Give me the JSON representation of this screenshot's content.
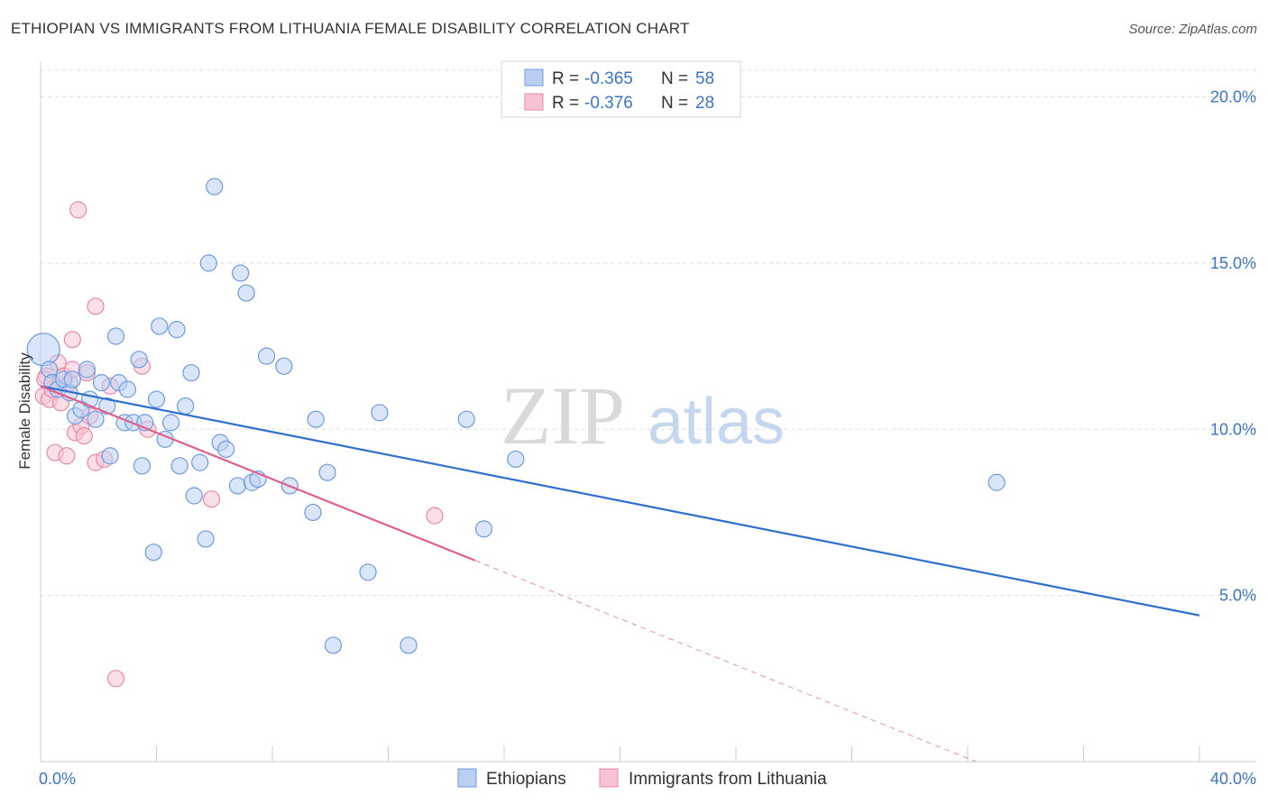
{
  "header": {
    "title": "ETHIOPIAN VS IMMIGRANTS FROM LITHUANIA FEMALE DISABILITY CORRELATION CHART",
    "source": "Source: ZipAtlas.com"
  },
  "watermark": {
    "zip": "ZIP",
    "atlas": "atlas"
  },
  "legend": {
    "rows": [
      {
        "r_label": "R =",
        "r_value": "-0.365",
        "n_label": "N =",
        "n_value": "58"
      },
      {
        "r_label": "R =",
        "r_value": "-0.376",
        "n_label": "N =",
        "n_value": "28"
      }
    ]
  },
  "colors": {
    "blue_fill": "#b9d0f3",
    "blue_stroke": "#6d9ae0",
    "blue_line": "#2f6fcf",
    "pink_fill": "#f7c3d3",
    "pink_stroke": "#e889a8",
    "pink_line": "#e0608b",
    "tick_text": "#3b74c9",
    "grid": "#dddddd"
  },
  "chart_data": {
    "type": "scatter",
    "title": "ETHIOPIAN VS IMMIGRANTS FROM LITHUANIA FEMALE DISABILITY CORRELATION CHART",
    "xlabel": "",
    "ylabel": "Female Disability",
    "xlim": [
      0,
      40
    ],
    "ylim": [
      0,
      20.8
    ],
    "x_tick_labels": [
      "0.0%",
      "40.0%"
    ],
    "y_ticks": [
      5,
      10,
      15,
      20
    ],
    "y_tick_labels": [
      "5.0%",
      "10.0%",
      "15.0%",
      "20.0%"
    ],
    "grid": true,
    "legend_position": "top-center",
    "series": [
      {
        "name": "Ethiopians",
        "color": "#6d9ae0",
        "r": -0.365,
        "n": 58,
        "trend": {
          "x": [
            0,
            40
          ],
          "y": [
            11.3,
            4.4
          ]
        },
        "points": [
          {
            "x": 0.1,
            "y": 12.4,
            "big": true
          },
          {
            "x": 0.3,
            "y": 11.8
          },
          {
            "x": 0.4,
            "y": 11.4
          },
          {
            "x": 0.6,
            "y": 11.2
          },
          {
            "x": 0.8,
            "y": 11.5
          },
          {
            "x": 1.0,
            "y": 11.1
          },
          {
            "x": 1.1,
            "y": 11.5
          },
          {
            "x": 1.2,
            "y": 10.4
          },
          {
            "x": 1.4,
            "y": 10.6
          },
          {
            "x": 1.6,
            "y": 11.8
          },
          {
            "x": 1.7,
            "y": 10.9
          },
          {
            "x": 1.9,
            "y": 10.3
          },
          {
            "x": 2.1,
            "y": 11.4
          },
          {
            "x": 2.3,
            "y": 10.7
          },
          {
            "x": 2.4,
            "y": 9.2
          },
          {
            "x": 2.6,
            "y": 12.8
          },
          {
            "x": 2.7,
            "y": 11.4
          },
          {
            "x": 2.9,
            "y": 10.2
          },
          {
            "x": 3.0,
            "y": 11.2
          },
          {
            "x": 3.2,
            "y": 10.2
          },
          {
            "x": 3.4,
            "y": 12.1
          },
          {
            "x": 3.5,
            "y": 8.9
          },
          {
            "x": 3.6,
            "y": 10.2
          },
          {
            "x": 3.9,
            "y": 6.3
          },
          {
            "x": 4.0,
            "y": 10.9
          },
          {
            "x": 4.1,
            "y": 13.1
          },
          {
            "x": 4.3,
            "y": 9.7
          },
          {
            "x": 4.5,
            "y": 10.2
          },
          {
            "x": 4.7,
            "y": 13.0
          },
          {
            "x": 4.8,
            "y": 8.9
          },
          {
            "x": 5.0,
            "y": 10.7
          },
          {
            "x": 5.2,
            "y": 11.7
          },
          {
            "x": 5.3,
            "y": 8.0
          },
          {
            "x": 5.5,
            "y": 9.0
          },
          {
            "x": 5.7,
            "y": 6.7
          },
          {
            "x": 5.8,
            "y": 15.0
          },
          {
            "x": 6.0,
            "y": 17.3
          },
          {
            "x": 6.2,
            "y": 9.6
          },
          {
            "x": 6.4,
            "y": 9.4
          },
          {
            "x": 6.8,
            "y": 8.3
          },
          {
            "x": 6.9,
            "y": 14.7
          },
          {
            "x": 7.1,
            "y": 14.1
          },
          {
            "x": 7.3,
            "y": 8.4
          },
          {
            "x": 7.5,
            "y": 8.5
          },
          {
            "x": 7.8,
            "y": 12.2
          },
          {
            "x": 8.4,
            "y": 11.9
          },
          {
            "x": 8.6,
            "y": 8.3
          },
          {
            "x": 9.4,
            "y": 7.5
          },
          {
            "x": 9.5,
            "y": 10.3
          },
          {
            "x": 9.9,
            "y": 8.7
          },
          {
            "x": 10.1,
            "y": 3.5
          },
          {
            "x": 11.3,
            "y": 5.7
          },
          {
            "x": 11.7,
            "y": 10.5
          },
          {
            "x": 12.7,
            "y": 3.5
          },
          {
            "x": 14.7,
            "y": 10.3
          },
          {
            "x": 15.3,
            "y": 7.0
          },
          {
            "x": 16.4,
            "y": 9.1
          },
          {
            "x": 33.0,
            "y": 8.4
          }
        ]
      },
      {
        "name": "Immigrants from Lithuania",
        "color": "#e889a8",
        "r": -0.376,
        "n": 28,
        "trend": {
          "x": [
            0,
            15.0
          ],
          "y": [
            11.3,
            6.05
          ]
        },
        "trend_dashed": {
          "x": [
            15.0,
            40
          ],
          "y": [
            6.05,
            -2.7
          ]
        },
        "points": [
          {
            "x": 0.1,
            "y": 11.0
          },
          {
            "x": 0.2,
            "y": 11.6
          },
          {
            "x": 0.3,
            "y": 10.9
          },
          {
            "x": 0.4,
            "y": 11.2
          },
          {
            "x": 0.5,
            "y": 9.3
          },
          {
            "x": 0.6,
            "y": 12.0
          },
          {
            "x": 0.7,
            "y": 10.8
          },
          {
            "x": 0.8,
            "y": 11.6
          },
          {
            "x": 0.9,
            "y": 9.2
          },
          {
            "x": 1.0,
            "y": 11.4
          },
          {
            "x": 1.1,
            "y": 11.8
          },
          {
            "x": 1.1,
            "y": 12.7
          },
          {
            "x": 1.2,
            "y": 9.9
          },
          {
            "x": 1.3,
            "y": 16.6
          },
          {
            "x": 1.4,
            "y": 10.1
          },
          {
            "x": 1.5,
            "y": 9.8
          },
          {
            "x": 1.6,
            "y": 11.7
          },
          {
            "x": 1.7,
            "y": 10.4
          },
          {
            "x": 1.9,
            "y": 9.0
          },
          {
            "x": 1.9,
            "y": 13.7
          },
          {
            "x": 2.2,
            "y": 9.1
          },
          {
            "x": 2.4,
            "y": 11.3
          },
          {
            "x": 2.6,
            "y": 2.5
          },
          {
            "x": 3.5,
            "y": 11.9
          },
          {
            "x": 3.7,
            "y": 10.0
          },
          {
            "x": 5.9,
            "y": 7.9
          },
          {
            "x": 13.6,
            "y": 7.4
          },
          {
            "x": 0.15,
            "y": 11.5
          }
        ]
      }
    ]
  }
}
